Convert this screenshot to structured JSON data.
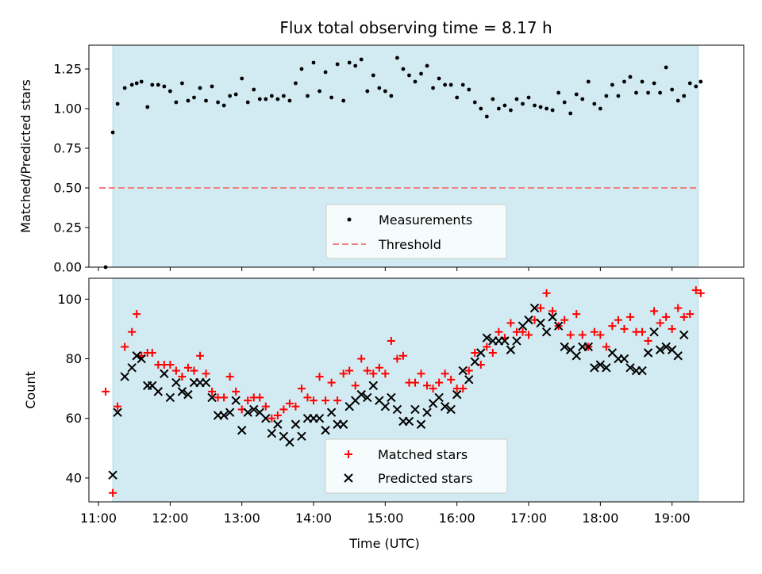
{
  "title": "Flux total observing time = 8.17 h",
  "colors": {
    "observing_band": "#add8e6",
    "measurement": "#000000",
    "threshold": "#f08080",
    "matched": "#ff0000",
    "predicted": "#000000"
  },
  "chart_data": [
    {
      "type": "scatter",
      "panel": "top",
      "xlabel": "",
      "ylabel": "Matched/Predicted stars",
      "ylim": [
        0,
        1.4
      ],
      "yticks": [
        0.0,
        0.25,
        0.5,
        0.75,
        1.0,
        1.25
      ],
      "ytick_labels": [
        "0.00",
        "0.25",
        "0.50",
        "0.75",
        "1.00",
        "1.25"
      ],
      "observing_span": [
        "11:12",
        "19:22"
      ],
      "threshold": 0.5,
      "legend": [
        "Measurements",
        "Threshold"
      ],
      "legend_position": "lower center",
      "series": [
        {
          "name": "Measurements",
          "x": [
            "11:06",
            "11:12",
            "11:16",
            "11:22",
            "11:28",
            "11:32",
            "11:36",
            "11:41",
            "11:45",
            "11:50",
            "11:55",
            "12:00",
            "12:05",
            "12:10",
            "12:15",
            "12:20",
            "12:25",
            "12:30",
            "12:35",
            "12:40",
            "12:45",
            "12:50",
            "12:55",
            "13:00",
            "13:05",
            "13:10",
            "13:15",
            "13:20",
            "13:25",
            "13:30",
            "13:35",
            "13:40",
            "13:45",
            "13:50",
            "13:55",
            "14:00",
            "14:05",
            "14:10",
            "14:15",
            "14:20",
            "14:25",
            "14:30",
            "14:35",
            "14:40",
            "14:45",
            "14:50",
            "14:55",
            "15:00",
            "15:05",
            "15:10",
            "15:15",
            "15:20",
            "15:25",
            "15:30",
            "15:35",
            "15:40",
            "15:45",
            "15:50",
            "15:55",
            "16:00",
            "16:05",
            "16:10",
            "16:15",
            "16:20",
            "16:25",
            "16:30",
            "16:35",
            "16:40",
            "16:45",
            "16:50",
            "16:55",
            "17:00",
            "17:05",
            "17:10",
            "17:15",
            "17:20",
            "17:25",
            "17:30",
            "17:35",
            "17:40",
            "17:45",
            "17:50",
            "17:55",
            "18:00",
            "18:05",
            "18:10",
            "18:15",
            "18:20",
            "18:25",
            "18:30",
            "18:35",
            "18:40",
            "18:45",
            "18:50",
            "18:55",
            "19:00",
            "19:05",
            "19:10",
            "19:15",
            "19:20",
            "19:24"
          ],
          "y": [
            0.0,
            0.85,
            1.03,
            1.13,
            1.15,
            1.16,
            1.17,
            1.01,
            1.15,
            1.15,
            1.14,
            1.11,
            1.04,
            1.16,
            1.05,
            1.07,
            1.13,
            1.05,
            1.14,
            1.04,
            1.02,
            1.08,
            1.09,
            1.19,
            1.04,
            1.12,
            1.06,
            1.06,
            1.08,
            1.06,
            1.08,
            1.05,
            1.16,
            1.25,
            1.08,
            1.29,
            1.11,
            1.23,
            1.07,
            1.28,
            1.05,
            1.29,
            1.27,
            1.31,
            1.11,
            1.21,
            1.13,
            1.11,
            1.08,
            1.32,
            1.25,
            1.21,
            1.17,
            1.22,
            1.27,
            1.13,
            1.19,
            1.15,
            1.15,
            1.07,
            1.15,
            1.12,
            1.04,
            1.0,
            0.95,
            1.06,
            1.0,
            1.02,
            0.99,
            1.06,
            1.03,
            1.07,
            1.02,
            1.01,
            1.0,
            0.99,
            1.1,
            1.04,
            0.97,
            1.09,
            1.06,
            1.17,
            1.03,
            1.0,
            1.08,
            1.15,
            1.08,
            1.17,
            1.2,
            1.1,
            1.17,
            1.1,
            1.16,
            1.1,
            1.26,
            1.12,
            1.05,
            1.08,
            1.16,
            1.14,
            1.17
          ]
        }
      ]
    },
    {
      "type": "scatter",
      "panel": "bottom",
      "xlabel": "Time (UTC)",
      "ylabel": "Count",
      "ylim": [
        32,
        107
      ],
      "yticks": [
        40,
        60,
        80,
        100
      ],
      "ytick_labels": [
        "40",
        "60",
        "80",
        "100"
      ],
      "xlim": [
        "10:52",
        "20:00"
      ],
      "xticks": [
        "11:00",
        "12:00",
        "13:00",
        "14:00",
        "15:00",
        "16:00",
        "17:00",
        "18:00",
        "19:00"
      ],
      "observing_span": [
        "11:12",
        "19:22"
      ],
      "legend": [
        "Matched stars",
        "Predicted stars"
      ],
      "legend_position": "lower center",
      "x": [
        "11:06",
        "11:12",
        "11:16",
        "11:22",
        "11:28",
        "11:32",
        "11:36",
        "11:41",
        "11:45",
        "11:50",
        "11:55",
        "12:00",
        "12:05",
        "12:10",
        "12:15",
        "12:20",
        "12:25",
        "12:30",
        "12:35",
        "12:40",
        "12:45",
        "12:50",
        "12:55",
        "13:00",
        "13:05",
        "13:10",
        "13:15",
        "13:20",
        "13:25",
        "13:30",
        "13:35",
        "13:40",
        "13:45",
        "13:50",
        "13:55",
        "14:00",
        "14:05",
        "14:10",
        "14:15",
        "14:20",
        "14:25",
        "14:30",
        "14:35",
        "14:40",
        "14:45",
        "14:50",
        "14:55",
        "15:00",
        "15:05",
        "15:10",
        "15:15",
        "15:20",
        "15:25",
        "15:30",
        "15:35",
        "15:40",
        "15:45",
        "15:50",
        "15:55",
        "16:00",
        "16:05",
        "16:10",
        "16:15",
        "16:20",
        "16:25",
        "16:30",
        "16:35",
        "16:40",
        "16:45",
        "16:50",
        "16:55",
        "17:00",
        "17:05",
        "17:10",
        "17:15",
        "17:20",
        "17:25",
        "17:30",
        "17:35",
        "17:40",
        "17:45",
        "17:50",
        "17:55",
        "18:00",
        "18:05",
        "18:10",
        "18:15",
        "18:20",
        "18:25",
        "18:30",
        "18:35",
        "18:40",
        "18:45",
        "18:50",
        "18:55",
        "19:00",
        "19:05",
        "19:10",
        "19:15",
        "19:20",
        "19:24"
      ],
      "series": [
        {
          "name": "Matched stars",
          "marker": "plus",
          "values": [
            69,
            35,
            64,
            84,
            89,
            95,
            81,
            82,
            82,
            78,
            78,
            78,
            76,
            74,
            77,
            76,
            81,
            75,
            69,
            67,
            67,
            74,
            69,
            63,
            66,
            67,
            67,
            64,
            60,
            61,
            63,
            65,
            64,
            70,
            67,
            66,
            74,
            66,
            72,
            66,
            75,
            76,
            71,
            80,
            76,
            75,
            77,
            75,
            86,
            80,
            81,
            72,
            72,
            75,
            71,
            70,
            72,
            75,
            73,
            70,
            70,
            76,
            82,
            78,
            84,
            82,
            89,
            87,
            92,
            89,
            89,
            88,
            93,
            97,
            102,
            96,
            91,
            93,
            88,
            95,
            88,
            84,
            89,
            88,
            84,
            91,
            93,
            90,
            94,
            89,
            89,
            86,
            96,
            92,
            94,
            90,
            97,
            94,
            95,
            103,
            102
          ]
        },
        {
          "name": "Predicted stars",
          "marker": "x",
          "values": [
            null,
            41,
            62,
            74,
            77,
            81,
            80,
            71,
            71,
            69,
            75,
            67,
            72,
            69,
            68,
            72,
            72,
            72,
            67,
            61,
            61,
            62,
            66,
            56,
            62,
            63,
            62,
            60,
            55,
            58,
            54,
            52,
            58,
            54,
            60,
            60,
            60,
            56,
            62,
            58,
            58,
            64,
            66,
            68,
            67,
            71,
            66,
            64,
            67,
            63,
            59,
            59,
            63,
            58,
            62,
            65,
            67,
            64,
            63,
            68,
            76,
            73,
            79,
            82,
            87,
            86,
            86,
            86,
            83,
            86,
            91,
            93,
            97,
            92,
            89,
            94,
            91,
            84,
            83,
            81,
            84,
            84,
            77,
            78,
            77,
            82,
            80,
            80,
            77,
            76,
            76,
            82,
            89,
            83,
            84,
            83,
            81,
            88,
            null,
            null,
            null
          ]
        }
      ]
    }
  ]
}
